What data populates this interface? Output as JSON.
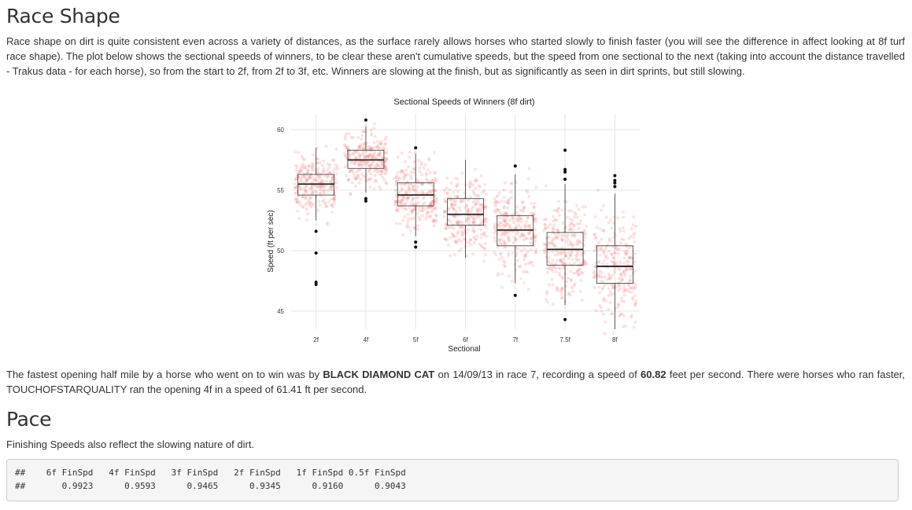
{
  "race_shape": {
    "heading": "Race Shape",
    "intro": "Race shape on dirt is quite consistent even across a variety of distances, as the surface rarely allows horses who started slowly to finish faster (you will see the difference in affect looking at 8f turf race shape). The plot below shows the sectional speeds of winners, to be clear these aren't cumulative speeds, but the speed from one sectional to the next (taking into account the distance travelled - Trakus data - for each horse), so from the start to 2f, from 2f to 3f, etc. Winners are slowing at the finish, but as significantly as seen in dirt sprints, but still slowing.",
    "fastest": {
      "part1": "The fastest opening half mile by a horse who went on to win was by ",
      "horse": "BLACK DIAMOND CAT",
      "part2": " on 14/09/13 in race 7, recording a speed of ",
      "speed": "60.82",
      "part3": " feet per second. There were horses who ran faster, TOUCHOFSTARQUALITY ran the opening 4f in a speed of 61.41 ft per second."
    }
  },
  "chart_data": {
    "type": "boxplot",
    "title": "Sectional Speeds of Winners (8f dirt)",
    "xlabel": "Sectional",
    "ylabel": "Speed (ft per sec)",
    "ylim": [
      43.5,
      61.3
    ],
    "yticks": [
      45,
      50,
      55,
      60
    ],
    "categories": [
      "2f",
      "4f",
      "5f",
      "6f",
      "7f",
      "7.5f",
      "8f"
    ],
    "grid": true,
    "jitter_color": "#f08080",
    "box_stats": [
      {
        "whisker_low": 52.5,
        "q1": 54.6,
        "median": 55.5,
        "q3": 56.3,
        "whisker_high": 58.5,
        "outliers": [
          51.6,
          49.8,
          47.4,
          47.2
        ]
      },
      {
        "whisker_low": 54.8,
        "q1": 56.8,
        "median": 57.5,
        "q3": 58.3,
        "whisker_high": 60.2,
        "outliers": [
          60.8,
          54.3,
          54.1
        ]
      },
      {
        "whisker_low": 51.2,
        "q1": 53.7,
        "median": 54.6,
        "q3": 55.6,
        "whisker_high": 58.0,
        "outliers": [
          58.5,
          50.7,
          50.3
        ]
      },
      {
        "whisker_low": 49.4,
        "q1": 52.1,
        "median": 53.0,
        "q3": 54.3,
        "whisker_high": 57.5,
        "outliers": []
      },
      {
        "whisker_low": 47.3,
        "q1": 50.4,
        "median": 51.7,
        "q3": 52.9,
        "whisker_high": 56.3,
        "outliers": [
          57.0,
          46.3
        ]
      },
      {
        "whisker_low": 45.5,
        "q1": 48.8,
        "median": 50.1,
        "q3": 51.5,
        "whisker_high": 55.5,
        "outliers": [
          58.3,
          56.7,
          56.5,
          55.9,
          44.3
        ]
      },
      {
        "whisker_low": 43.5,
        "q1": 47.3,
        "median": 48.7,
        "q3": 50.4,
        "whisker_high": 54.7,
        "outliers": [
          56.2,
          55.8,
          55.6,
          55.3
        ]
      }
    ]
  },
  "pace": {
    "heading": "Pace",
    "text": "Finishing Speeds also reflect the slowing nature of dirt.",
    "code_line1": "##    6f FinSpd   4f FinSpd   3f FinSpd   2f FinSpd   1f FinSpd 0.5f FinSpd",
    "code_line2": "##       0.9923      0.9593      0.9465      0.9345      0.9160      0.9043"
  }
}
